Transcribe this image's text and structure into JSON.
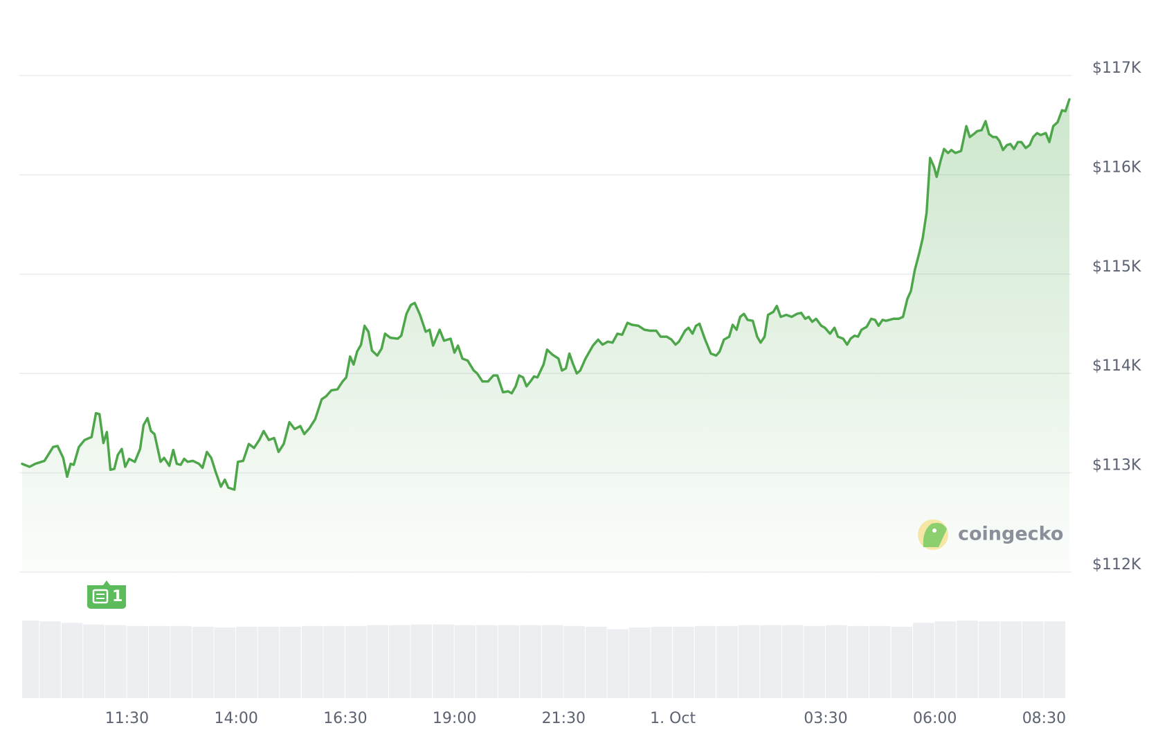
{
  "chart_data": {
    "type": "line",
    "x": [
      9.1,
      9.27,
      9.4,
      9.61,
      9.81,
      9.91,
      10.04,
      10.13,
      10.21,
      10.28,
      10.4,
      10.53,
      10.69,
      10.79,
      10.87,
      10.96,
      11.04,
      11.12,
      11.21,
      11.29,
      11.38,
      11.46,
      11.55,
      11.68,
      11.8,
      11.88,
      11.97,
      12.05,
      12.13,
      12.27,
      12.35,
      12.47,
      12.56,
      12.64,
      12.73,
      12.81,
      12.89,
      13.01,
      13.15,
      13.23,
      13.33,
      13.43,
      13.53,
      13.65,
      13.74,
      13.82,
      13.96,
      14.04,
      14.16,
      14.29,
      14.41,
      14.53,
      14.63,
      14.75,
      14.87,
      14.97,
      15.09,
      15.22,
      15.34,
      15.47,
      15.56,
      15.68,
      15.81,
      15.96,
      16.06,
      16.18,
      16.32,
      16.44,
      16.52,
      16.61,
      16.69,
      16.77,
      16.86,
      16.94,
      17.03,
      17.11,
      17.23,
      17.33,
      17.41,
      17.53,
      17.7,
      17.78,
      17.9,
      18.0,
      18.09,
      18.21,
      18.34,
      18.43,
      18.51,
      18.66,
      18.76,
      18.91,
      19.0,
      19.08,
      19.18,
      19.3,
      19.44,
      19.52,
      19.64,
      19.77,
      19.89,
      19.98,
      20.11,
      20.23,
      20.31,
      20.4,
      20.48,
      20.57,
      20.65,
      20.74,
      20.82,
      20.9,
      21.04,
      21.12,
      21.24,
      21.38,
      21.46,
      21.55,
      21.63,
      21.71,
      21.8,
      21.88,
      22.0,
      22.17,
      22.29,
      22.39,
      22.51,
      22.62,
      22.73,
      22.84,
      22.96,
      23.06,
      23.21,
      23.35,
      23.48,
      23.62,
      23.72,
      23.86,
      23.97,
      24.06,
      24.14,
      24.28,
      24.36,
      24.45,
      24.53,
      24.61,
      24.73,
      24.87,
      24.99,
      25.07,
      25.17,
      25.29,
      25.37,
      25.46,
      25.54,
      25.63,
      25.71,
      25.83,
      25.93,
      26.01,
      26.1,
      26.18,
      26.3,
      26.38,
      26.47,
      26.6,
      26.72,
      26.84,
      26.94,
      27.03,
      27.11,
      27.19,
      27.28,
      27.4,
      27.48,
      27.6,
      27.7,
      27.78,
      27.9,
      27.99,
      28.07,
      28.16,
      28.24,
      28.32,
      28.44,
      28.54,
      28.63,
      28.71,
      28.8,
      28.88,
      28.96,
      29.05,
      29.17,
      29.27,
      29.37,
      29.45,
      29.54,
      29.64,
      29.72,
      29.81,
      29.89,
      29.98,
      30.04,
      30.13,
      30.21,
      30.3,
      30.38,
      30.47,
      30.6,
      30.72,
      30.8,
      30.89,
      30.97,
      31.07,
      31.16,
      31.24,
      31.33,
      31.41,
      31.48,
      31.56,
      31.65,
      31.73,
      31.81,
      31.9,
      31.98,
      32.08,
      32.17,
      32.25,
      32.34,
      32.42,
      32.54,
      32.62,
      32.71,
      32.81,
      32.91,
      32.99,
      33.08
    ],
    "series": [
      {
        "color": "#4ea64b",
        "values": [
          113090,
          113060,
          113090,
          113120,
          113260,
          113270,
          113150,
          112960,
          113090,
          113080,
          113260,
          113330,
          113360,
          113600,
          113590,
          113300,
          113410,
          113030,
          113040,
          113180,
          113240,
          113060,
          113140,
          113110,
          113240,
          113480,
          113550,
          113420,
          113390,
          113110,
          113150,
          113070,
          113230,
          113090,
          113080,
          113140,
          113110,
          113120,
          113090,
          113050,
          113210,
          113150,
          113010,
          112860,
          112930,
          112850,
          112830,
          113110,
          113120,
          113290,
          113250,
          113330,
          113420,
          113330,
          113350,
          113210,
          113290,
          113510,
          113440,
          113470,
          113390,
          113450,
          113540,
          113740,
          113770,
          113830,
          113840,
          113920,
          113960,
          114170,
          114090,
          114220,
          114290,
          114480,
          114420,
          114230,
          114180,
          114250,
          114400,
          114360,
          114350,
          114380,
          114600,
          114690,
          114710,
          114590,
          114420,
          114440,
          114280,
          114440,
          114330,
          114350,
          114210,
          114280,
          114150,
          114130,
          114030,
          114000,
          113920,
          113920,
          113980,
          113980,
          113810,
          113820,
          113800,
          113870,
          113980,
          113960,
          113870,
          113920,
          113970,
          113960,
          114090,
          114240,
          114190,
          114150,
          114030,
          114050,
          114200,
          114100,
          114000,
          114030,
          114150,
          114280,
          114340,
          114290,
          114320,
          114310,
          114400,
          114390,
          114510,
          114490,
          114480,
          114440,
          114430,
          114430,
          114370,
          114370,
          114340,
          114290,
          114320,
          114430,
          114460,
          114400,
          114480,
          114500,
          114350,
          114200,
          114180,
          114220,
          114340,
          114370,
          114490,
          114440,
          114570,
          114600,
          114540,
          114530,
          114370,
          114310,
          114370,
          114590,
          114620,
          114680,
          114570,
          114590,
          114570,
          114600,
          114610,
          114550,
          114570,
          114520,
          114550,
          114480,
          114460,
          114400,
          114460,
          114370,
          114350,
          114290,
          114350,
          114380,
          114370,
          114440,
          114470,
          114550,
          114540,
          114480,
          114540,
          114530,
          114540,
          114550,
          114550,
          114570,
          114750,
          114830,
          115040,
          115210,
          115360,
          115620,
          116170,
          116080,
          115980,
          116140,
          116260,
          116220,
          116250,
          116220,
          116240,
          116490,
          116380,
          116410,
          116440,
          116450,
          116540,
          116410,
          116380,
          116380,
          116340,
          116250,
          116300,
          116310,
          116260,
          116330,
          116330,
          116270,
          116300,
          116380,
          116420,
          116400,
          116420,
          116330,
          116490,
          116530,
          116650,
          116640,
          116760
        ]
      }
    ],
    "xlim": [
      9.1,
      33.08
    ],
    "xticks": [
      {
        "value": 11.5,
        "label": "11:30"
      },
      {
        "value": 14,
        "label": "14:00"
      },
      {
        "value": 16.5,
        "label": "16:30"
      },
      {
        "value": 19,
        "label": "19:00"
      },
      {
        "value": 21.5,
        "label": "21:30"
      },
      {
        "value": 24,
        "label": "1. Oct"
      },
      {
        "value": 27.5,
        "label": "03:30"
      },
      {
        "value": 30,
        "label": "06:00"
      },
      {
        "value": 32.5,
        "label": "08:30"
      }
    ],
    "ylim": [
      112000,
      117000
    ],
    "yticks": [
      {
        "value": 112000,
        "label": "$112K"
      },
      {
        "value": 113000,
        "label": "$113K"
      },
      {
        "value": 114000,
        "label": "$114K"
      },
      {
        "value": 115000,
        "label": "$115K"
      },
      {
        "value": 116000,
        "label": "$116K"
      },
      {
        "value": 117000,
        "label": "$117K"
      }
    ],
    "grid": true,
    "volume": {
      "color": "#eceef2",
      "ylim": [
        0,
        100
      ],
      "x": [
        9.5,
        10,
        10.5,
        11,
        11.5,
        12,
        12.5,
        13,
        13.5,
        14,
        14.5,
        15,
        15.5,
        16,
        16.5,
        17,
        17.5,
        18,
        18.5,
        19,
        19.5,
        20,
        20.5,
        21,
        21.5,
        22,
        22.5,
        23,
        23.5,
        24,
        24.5,
        25,
        25.5,
        26,
        26.5,
        27,
        27.5,
        28,
        28.5,
        29,
        29.5,
        30,
        30.5,
        31,
        31.5,
        32,
        32.5,
        33
      ],
      "values": [
        100,
        99,
        97,
        95,
        94,
        93,
        93,
        93,
        92,
        91,
        92,
        92,
        92,
        93,
        93,
        93,
        94,
        94,
        95,
        95,
        94,
        94,
        94,
        94,
        94,
        93,
        92,
        89,
        91,
        92,
        92,
        93,
        93,
        94,
        94,
        94,
        93,
        94,
        93,
        93,
        92,
        97,
        99,
        100,
        99,
        99,
        99,
        99
      ]
    },
    "news_badge": "1",
    "watermark": "coingecko"
  }
}
